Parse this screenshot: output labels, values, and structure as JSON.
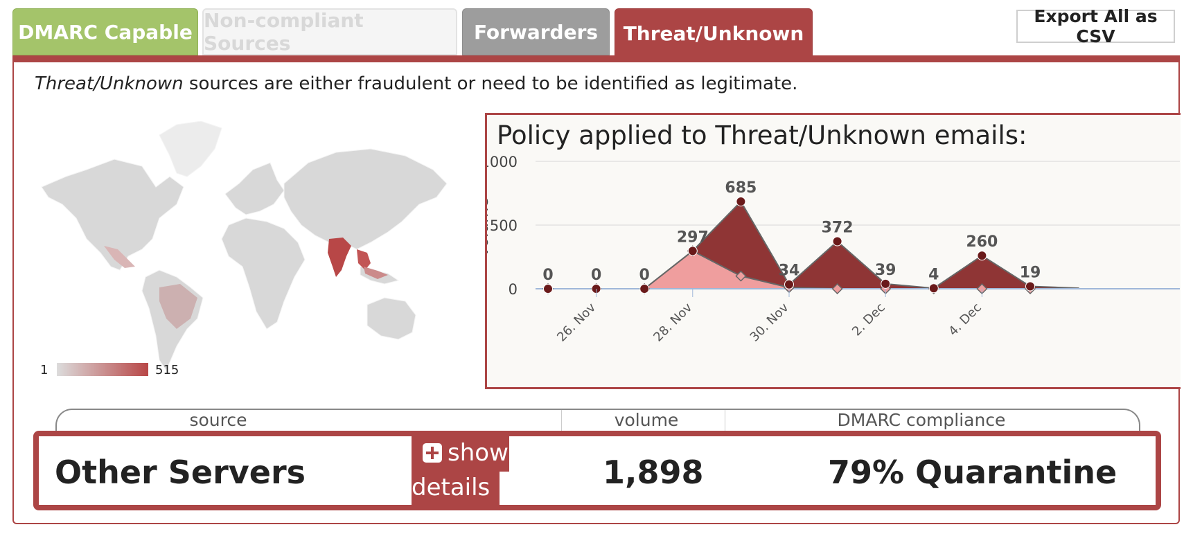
{
  "tabs": [
    {
      "label": "DMARC Capable",
      "color": "#a4c46a"
    },
    {
      "label": "Non-compliant Sources",
      "color": "#f5f5f5"
    },
    {
      "label": "Forwarders",
      "color": "#9d9d9d"
    },
    {
      "label": "Threat/Unknown",
      "color": "#ac4545",
      "active": true
    }
  ],
  "export_label": "Export All as CSV",
  "description": {
    "emphasis": "Threat/Unknown",
    "rest": " sources are either fraudulent or need to be identified as legitimate."
  },
  "map": {
    "legend_min": "1",
    "legend_max": "515",
    "highlight_color": "#b84747",
    "base_color": "#d8d8d8"
  },
  "chart_data": {
    "type": "area",
    "title": "Policy applied to Threat/Unknown emails:",
    "ylabel": "volume",
    "ylim": [
      0,
      1000
    ],
    "yticks": [
      0,
      500,
      1000
    ],
    "x": [
      "25 Nov",
      "26 Nov",
      "27 Nov",
      "28 Nov",
      "29 Nov",
      "30 Nov",
      "1 Dec",
      "2 Dec",
      "3 Dec",
      "4 Dec",
      "5 Dec",
      "6 Dec"
    ],
    "xtick_labels": [
      "26. Nov",
      "28. Nov",
      "30. Nov",
      "2. Dec",
      "4. Dec"
    ],
    "xtick_positions": [
      1,
      3,
      5,
      7,
      9
    ],
    "series": [
      {
        "values": [
          0,
          0,
          0,
          297,
          100,
          10,
          0,
          0,
          0,
          0,
          0,
          0
        ],
        "color": "#ef9e9e"
      },
      {
        "values": [
          0,
          0,
          0,
          0,
          585,
          24,
          372,
          39,
          4,
          260,
          19,
          5
        ],
        "color": "#8f3535"
      }
    ],
    "totals_labels": [
      "0",
      "0",
      "0",
      "297",
      "685",
      "34",
      "372",
      "39",
      "4",
      "260",
      "19",
      ""
    ],
    "grid": true
  },
  "table": {
    "headers": {
      "source": "source",
      "volume": "volume",
      "compliance": "DMARC compliance"
    },
    "row": {
      "source": "Other Servers",
      "details_line1": "show",
      "details_line2": "details",
      "volume": "1,898",
      "compliance": "79% Quarantine"
    }
  }
}
